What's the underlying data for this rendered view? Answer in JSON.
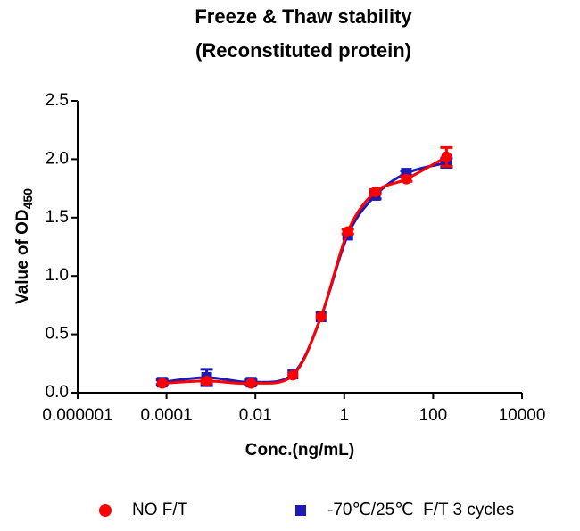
{
  "chart_data": {
    "type": "scatter",
    "title": [
      "Freeze & Thaw stability",
      "(Reconstituted protein)"
    ],
    "x_label": "Conc.(ng/mL)",
    "y_label": "Value of OD",
    "y_label_subscript": "450",
    "x_log": true,
    "xlim": [
      1e-06,
      10000
    ],
    "xticks": [
      1e-06,
      0.0001,
      0.01,
      1,
      100,
      10000
    ],
    "ylim": [
      0,
      2.5
    ],
    "yticks": [
      {
        "value": 0,
        "label": "0.0"
      },
      {
        "value": 0.5,
        "label": "0.5"
      },
      {
        "value": 1,
        "label": "1.0"
      },
      {
        "value": 1.5,
        "label": "1.5"
      },
      {
        "value": 2,
        "label": "2.0"
      },
      {
        "value": 2.5,
        "label": "2.5"
      }
    ],
    "x": [
      8e-05,
      0.0008,
      0.008,
      0.07,
      0.3,
      1.2,
      5,
      25,
      200
    ],
    "series": [
      {
        "name": "-70℃/25℃  F/T 3 cycles",
        "color": "#1c1cb4",
        "marker": "square",
        "values": [
          0.09,
          0.13,
          0.09,
          0.16,
          0.65,
          1.35,
          1.69,
          1.88,
          1.97
        ],
        "errors": [
          0.02,
          0.07,
          0.02,
          0,
          0,
          0,
          0.03,
          0.02,
          0.04
        ]
      },
      {
        "name": "NO F/T",
        "color": "#ff0000",
        "marker": "circle",
        "values": [
          0.08,
          0.1,
          0.08,
          0.15,
          0.65,
          1.38,
          1.72,
          1.83,
          2.02
        ],
        "errors": [
          0,
          0.02,
          0,
          0,
          0,
          0.02,
          0.02,
          0.02,
          0.08
        ]
      }
    ]
  }
}
